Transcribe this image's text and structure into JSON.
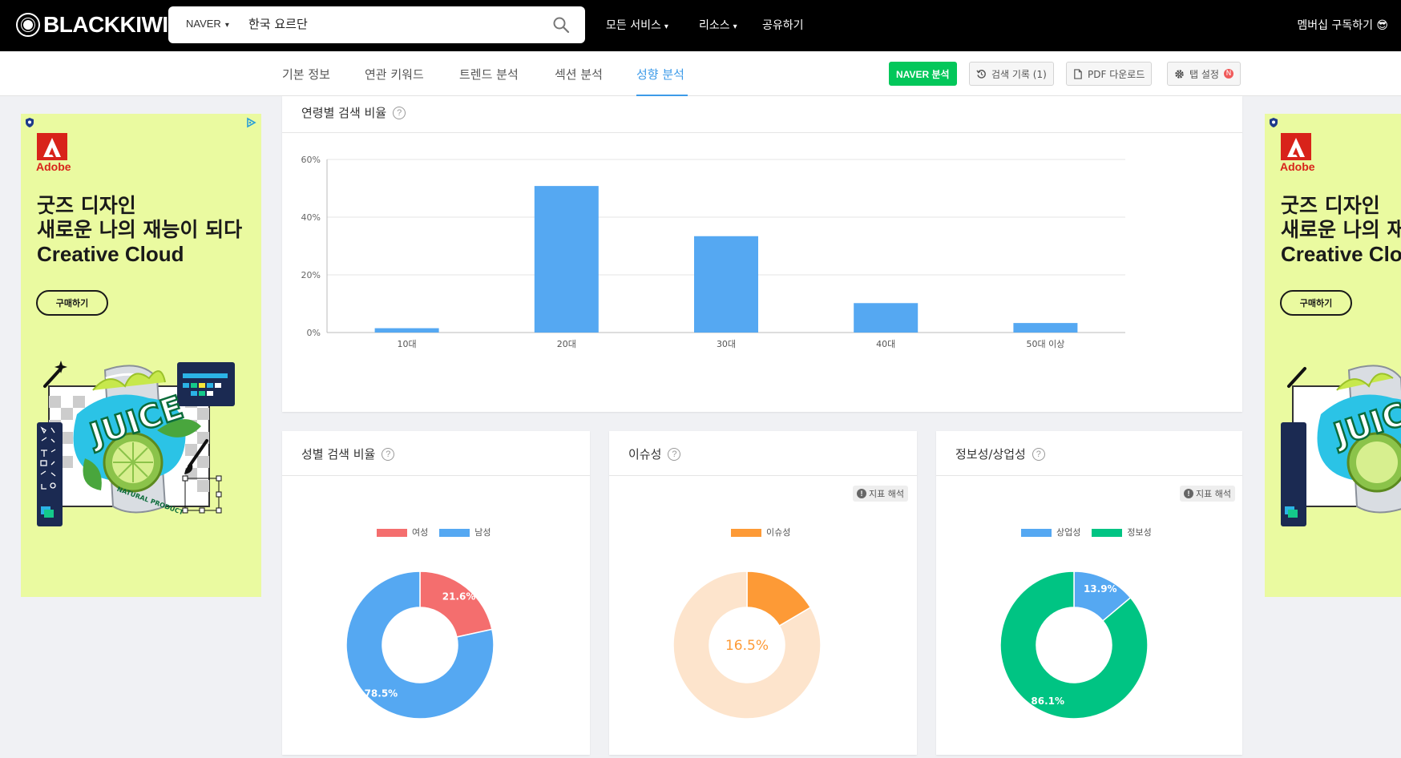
{
  "topbar": {
    "logo": "BLACKKIWI",
    "search_engine": "NAVER",
    "search_query": "한국 요르단",
    "menu": [
      {
        "label": "모든 서비스",
        "dropdown": true
      },
      {
        "label": "리소스",
        "dropdown": true
      },
      {
        "label": "공유하기",
        "dropdown": false
      }
    ],
    "membership": "멤버십 구독하기 😎"
  },
  "subnav": {
    "tabs": [
      {
        "label": "기본 정보",
        "active": false
      },
      {
        "label": "연관 키워드",
        "active": false
      },
      {
        "label": "트렌드 분석",
        "active": false
      },
      {
        "label": "섹션 분석",
        "active": false
      },
      {
        "label": "성향 분석",
        "active": true
      }
    ],
    "buttons": {
      "naver": "NAVER 분석",
      "history": "검색 기록 (1)",
      "pdf": "PDF 다운로드",
      "tab_settings": "탭 설정"
    }
  },
  "ad": {
    "brand": "Adobe",
    "headline": [
      "굿즈 디자인",
      "새로운 나의 재능이 되다",
      "Creative Cloud"
    ],
    "headline_right": [
      "굿즈 디자인",
      "새로운 나의 재",
      "Creative Clo"
    ],
    "cta": "구매하기",
    "art_text": "JUICE",
    "art_subtext": "NATURAL PRODUCT"
  },
  "age_card": {
    "title": "연령별 검색 비율",
    "chart_data": {
      "type": "bar",
      "categories": [
        "10대",
        "20대",
        "30대",
        "40대",
        "50대 이상"
      ],
      "values": [
        1.5,
        50.8,
        33.4,
        10.2,
        3.3
      ],
      "ylim": [
        0,
        60
      ],
      "yticks": [
        "0%",
        "20%",
        "40%",
        "60%"
      ],
      "ytick_values": [
        0,
        20,
        40,
        60
      ],
      "color": "#55a8f2",
      "grid": true
    }
  },
  "gender_card": {
    "title": "성별 검색 비율",
    "chart_data": {
      "type": "pie",
      "donut": true,
      "labels": [
        "여성",
        "남성"
      ],
      "values": [
        21.6,
        78.5
      ],
      "value_labels": [
        "21.6%",
        "78.5%"
      ],
      "colors": [
        "#f46e6e",
        "#55a8f2"
      ]
    }
  },
  "issue_card": {
    "title": "이슈성",
    "interpret": "지표 해석",
    "chart_data": {
      "type": "pie",
      "donut": true,
      "labels": [
        "이슈성"
      ],
      "values": [
        16.5
      ],
      "center_label": "16.5%",
      "colors": [
        "#fd9a36",
        "#fde4cc"
      ]
    }
  },
  "info_card": {
    "title": "정보성/상업성",
    "interpret": "지표 해석",
    "chart_data": {
      "type": "pie",
      "donut": true,
      "labels": [
        "상업성",
        "정보성"
      ],
      "values": [
        13.9,
        86.1
      ],
      "value_labels": [
        "13.9%",
        "86.1%"
      ],
      "colors": [
        "#55a8f2",
        "#00c483"
      ]
    }
  }
}
